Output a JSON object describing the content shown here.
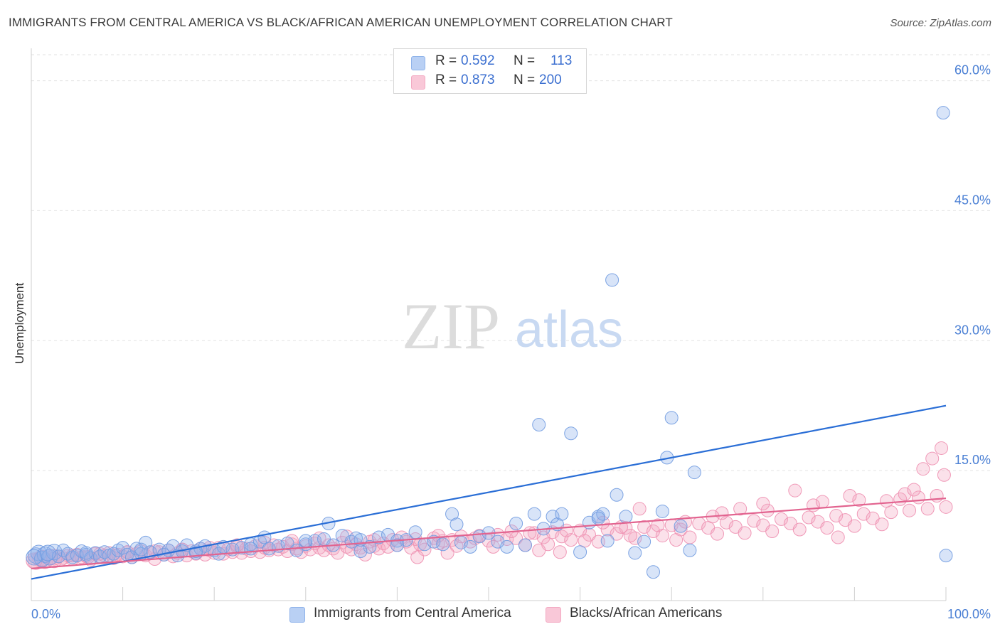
{
  "title": "IMMIGRANTS FROM CENTRAL AMERICA VS BLACK/AFRICAN AMERICAN UNEMPLOYMENT CORRELATION CHART",
  "source": "Source: ZipAtlas.com",
  "watermark": {
    "zip": "ZIP",
    "atlas": "atlas"
  },
  "legend": {
    "r_label": "R =",
    "n_label": "N =",
    "rows": [
      {
        "r": "0.592",
        "n": "113"
      },
      {
        "r": "0.873",
        "n": "200"
      }
    ]
  },
  "chart_data": {
    "type": "scatter",
    "title": "IMMIGRANTS FROM CENTRAL AMERICA VS BLACK/AFRICAN AMERICAN UNEMPLOYMENT CORRELATION CHART",
    "xlabel": "",
    "ylabel": "Unemployment",
    "xlim": [
      0,
      100
    ],
    "ylim": [
      0,
      63
    ],
    "x_tick_labels": [
      "0.0%",
      "100.0%"
    ],
    "y_ticks": [
      15,
      30,
      45,
      60
    ],
    "y_tick_labels": [
      "15.0%",
      "30.0%",
      "45.0%",
      "60.0%"
    ],
    "grid": true,
    "legend_position": "top-center",
    "series": [
      {
        "name": "Immigrants from Central America",
        "color": "#8fb3ea",
        "line_color": "#2a6ed6",
        "trend": {
          "x": [
            0,
            100
          ],
          "y": [
            2.5,
            22.5
          ]
        },
        "points": [
          [
            0.5,
            5.2
          ],
          [
            0.8,
            5.5
          ],
          [
            1.2,
            4.8
          ],
          [
            1.5,
            5.3
          ],
          [
            2,
            5.0
          ],
          [
            2.5,
            5.6
          ],
          [
            3,
            5.1
          ],
          [
            3.5,
            5.8
          ],
          [
            4,
            5.4
          ],
          [
            4.5,
            5.0
          ],
          [
            5,
            5.2
          ],
          [
            5.5,
            5.7
          ],
          [
            6,
            5.3
          ],
          [
            6.5,
            4.9
          ],
          [
            7,
            5.5
          ],
          [
            7.5,
            5.1
          ],
          [
            8,
            5.6
          ],
          [
            8.5,
            5.2
          ],
          [
            9,
            5.4
          ],
          [
            9.5,
            5.8
          ],
          [
            10,
            6.1
          ],
          [
            10.5,
            5.3
          ],
          [
            11,
            5.0
          ],
          [
            11.5,
            6.0
          ],
          [
            12,
            5.4
          ],
          [
            12.5,
            6.7
          ],
          [
            13,
            5.6
          ],
          [
            14,
            5.9
          ],
          [
            14.5,
            5.3
          ],
          [
            15,
            5.8
          ],
          [
            15.5,
            6.3
          ],
          [
            16,
            5.2
          ],
          [
            16.5,
            5.7
          ],
          [
            17,
            6.4
          ],
          [
            18,
            5.5
          ],
          [
            18.5,
            6.0
          ],
          [
            19,
            6.3
          ],
          [
            20,
            5.8
          ],
          [
            20.5,
            5.4
          ],
          [
            21,
            6.2
          ],
          [
            22,
            5.9
          ],
          [
            23,
            6.1
          ],
          [
            24,
            6.5
          ],
          [
            25,
            6.8
          ],
          [
            25.5,
            7.3
          ],
          [
            26,
            6.0
          ],
          [
            27,
            6.3
          ],
          [
            28,
            6.6
          ],
          [
            29,
            5.8
          ],
          [
            30,
            6.5
          ],
          [
            31,
            6.9
          ],
          [
            32,
            7.1
          ],
          [
            32.5,
            8.9
          ],
          [
            33,
            6.4
          ],
          [
            34,
            7.5
          ],
          [
            35,
            6.8
          ],
          [
            35.5,
            7.2
          ],
          [
            36,
            7.0
          ],
          [
            37,
            6.2
          ],
          [
            38,
            7.3
          ],
          [
            39,
            7.6
          ],
          [
            40,
            6.9
          ],
          [
            41,
            7.0
          ],
          [
            42,
            7.9
          ],
          [
            43,
            6.5
          ],
          [
            44,
            6.8
          ],
          [
            45,
            6.5
          ],
          [
            46,
            10.0
          ],
          [
            46.5,
            8.8
          ],
          [
            47,
            6.7
          ],
          [
            48,
            6.2
          ],
          [
            49,
            7.4
          ],
          [
            50,
            7.8
          ],
          [
            51,
            6.8
          ],
          [
            52,
            6.2
          ],
          [
            53,
            8.9
          ],
          [
            54,
            6.4
          ],
          [
            55,
            10.0
          ],
          [
            55.5,
            20.3
          ],
          [
            56,
            8.3
          ],
          [
            57,
            9.7
          ],
          [
            57.5,
            8.8
          ],
          [
            58,
            10.0
          ],
          [
            59,
            19.3
          ],
          [
            60,
            5.6
          ],
          [
            61,
            9.0
          ],
          [
            62,
            9.7
          ],
          [
            62.5,
            10.0
          ],
          [
            63,
            6.9
          ],
          [
            63.5,
            37.0
          ],
          [
            64,
            12.2
          ],
          [
            65,
            9.7
          ],
          [
            66,
            5.5
          ],
          [
            67,
            6.8
          ],
          [
            68,
            3.3
          ],
          [
            69,
            10.3
          ],
          [
            69.5,
            16.5
          ],
          [
            70,
            21.1
          ],
          [
            71,
            8.6
          ],
          [
            72,
            5.8
          ],
          [
            72.5,
            14.8
          ],
          [
            62,
            9.5
          ],
          [
            40,
            6.4
          ],
          [
            36,
            5.7
          ],
          [
            30,
            6.9
          ],
          [
            24,
            6.0
          ],
          [
            18,
            5.7
          ],
          [
            12,
            5.9
          ],
          [
            6,
            5.5
          ],
          [
            99.7,
            56.3
          ],
          [
            100,
            5.2
          ],
          [
            0.3,
            5.0
          ],
          [
            1.8,
            5.5
          ]
        ]
      },
      {
        "name": "Blacks/African Americans",
        "color": "#f3a9c2",
        "line_color": "#e2638f",
        "trend": {
          "x": [
            0,
            100
          ],
          "y": [
            3.7,
            11.8
          ]
        },
        "points": [
          [
            0.5,
            4.5
          ],
          [
            1,
            4.8
          ],
          [
            1.5,
            4.6
          ],
          [
            2,
            5.0
          ],
          [
            2.5,
            4.7
          ],
          [
            3,
            5.1
          ],
          [
            3.5,
            4.9
          ],
          [
            4,
            5.2
          ],
          [
            4.5,
            4.8
          ],
          [
            5,
            5.3
          ],
          [
            5.5,
            5.0
          ],
          [
            6,
            5.1
          ],
          [
            6.5,
            4.7
          ],
          [
            7,
            5.4
          ],
          [
            7.5,
            5.0
          ],
          [
            8,
            5.2
          ],
          [
            8.5,
            5.5
          ],
          [
            9,
            4.9
          ],
          [
            9.5,
            5.3
          ],
          [
            10,
            5.1
          ],
          [
            10.5,
            5.6
          ],
          [
            11,
            5.0
          ],
          [
            11.5,
            5.4
          ],
          [
            12,
            5.7
          ],
          [
            12.5,
            5.2
          ],
          [
            13,
            5.5
          ],
          [
            13.5,
            4.8
          ],
          [
            14,
            5.6
          ],
          [
            14.5,
            5.3
          ],
          [
            15,
            5.8
          ],
          [
            15.5,
            5.1
          ],
          [
            16,
            5.5
          ],
          [
            16.5,
            5.9
          ],
          [
            17,
            5.2
          ],
          [
            17.5,
            5.7
          ],
          [
            18,
            5.4
          ],
          [
            18.5,
            6.0
          ],
          [
            19,
            5.3
          ],
          [
            19.5,
            5.8
          ],
          [
            20,
            5.5
          ],
          [
            20.5,
            6.1
          ],
          [
            21,
            5.4
          ],
          [
            21.5,
            5.9
          ],
          [
            22,
            5.6
          ],
          [
            22.5,
            6.2
          ],
          [
            23,
            5.5
          ],
          [
            23.5,
            6.0
          ],
          [
            24,
            5.7
          ],
          [
            24.5,
            6.3
          ],
          [
            25,
            5.6
          ],
          [
            25.5,
            6.1
          ],
          [
            26,
            5.8
          ],
          [
            26.5,
            6.4
          ],
          [
            27,
            5.9
          ],
          [
            27.5,
            6.2
          ],
          [
            28,
            5.7
          ],
          [
            28.5,
            6.5
          ],
          [
            29,
            6.0
          ],
          [
            29.5,
            5.6
          ],
          [
            30,
            6.3
          ],
          [
            30.5,
            5.9
          ],
          [
            31,
            6.6
          ],
          [
            31.5,
            6.1
          ],
          [
            32,
            5.8
          ],
          [
            32.5,
            6.4
          ],
          [
            33,
            6.0
          ],
          [
            33.5,
            5.5
          ],
          [
            34,
            6.7
          ],
          [
            34.5,
            6.2
          ],
          [
            35,
            5.9
          ],
          [
            35.5,
            6.5
          ],
          [
            36,
            6.1
          ],
          [
            36.5,
            5.3
          ],
          [
            37,
            6.8
          ],
          [
            37.5,
            6.3
          ],
          [
            38,
            6.0
          ],
          [
            38.5,
            6.6
          ],
          [
            39,
            6.2
          ],
          [
            39.5,
            7.0
          ],
          [
            40,
            6.4
          ],
          [
            41,
            6.8
          ],
          [
            41.5,
            6.1
          ],
          [
            42,
            7.1
          ],
          [
            42.5,
            6.5
          ],
          [
            43,
            5.9
          ],
          [
            44,
            7.2
          ],
          [
            44.5,
            6.6
          ],
          [
            45,
            6.9
          ],
          [
            46,
            7.0
          ],
          [
            46.5,
            6.3
          ],
          [
            47,
            7.4
          ],
          [
            48,
            6.8
          ],
          [
            49,
            7.5
          ],
          [
            50,
            6.9
          ],
          [
            51,
            7.6
          ],
          [
            52,
            7.1
          ],
          [
            53,
            7.2
          ],
          [
            54,
            6.4
          ],
          [
            55,
            7.8
          ],
          [
            56,
            7.3
          ],
          [
            56.5,
            6.5
          ],
          [
            57,
            7.9
          ],
          [
            58,
            7.4
          ],
          [
            59,
            7.0
          ],
          [
            60,
            8.1
          ],
          [
            61,
            7.6
          ],
          [
            62,
            6.8
          ],
          [
            63,
            8.2
          ],
          [
            64,
            7.7
          ],
          [
            65,
            8.4
          ],
          [
            66,
            7.2
          ],
          [
            67,
            8.5
          ],
          [
            68,
            8.0
          ],
          [
            69,
            7.5
          ],
          [
            70,
            8.7
          ],
          [
            71,
            8.2
          ],
          [
            72,
            7.3
          ],
          [
            73,
            8.9
          ],
          [
            74,
            8.4
          ],
          [
            75,
            7.7
          ],
          [
            76,
            9.0
          ],
          [
            77,
            8.5
          ],
          [
            78,
            7.8
          ],
          [
            79,
            9.2
          ],
          [
            80,
            8.7
          ],
          [
            81,
            8.0
          ],
          [
            82,
            9.4
          ],
          [
            83,
            8.9
          ],
          [
            84,
            8.2
          ],
          [
            85,
            9.6
          ],
          [
            86,
            9.1
          ],
          [
            87,
            8.4
          ],
          [
            88,
            9.8
          ],
          [
            89,
            9.3
          ],
          [
            90,
            8.6
          ],
          [
            91,
            10.0
          ],
          [
            92,
            9.5
          ],
          [
            93,
            8.8
          ],
          [
            94,
            10.2
          ],
          [
            95,
            11.7
          ],
          [
            96,
            10.4
          ],
          [
            97,
            11.9
          ],
          [
            98,
            10.6
          ],
          [
            99,
            12.1
          ],
          [
            100,
            10.8
          ],
          [
            45.5,
            5.5
          ],
          [
            50.5,
            6.2
          ],
          [
            55.5,
            5.8
          ],
          [
            60.5,
            6.9
          ],
          [
            65.5,
            7.5
          ],
          [
            70.5,
            7.0
          ],
          [
            75.5,
            10.1
          ],
          [
            80.5,
            10.4
          ],
          [
            85.5,
            11.0
          ],
          [
            90.5,
            11.6
          ],
          [
            95.5,
            12.3
          ],
          [
            97.5,
            15.2
          ],
          [
            98.5,
            16.4
          ],
          [
            99.5,
            17.6
          ],
          [
            99.8,
            14.5
          ],
          [
            96.5,
            12.8
          ],
          [
            93.5,
            11.5
          ],
          [
            89.5,
            12.1
          ],
          [
            86.5,
            11.4
          ],
          [
            83.5,
            12.7
          ],
          [
            80,
            11.2
          ],
          [
            77.5,
            10.6
          ],
          [
            74.5,
            9.7
          ],
          [
            71.5,
            9.1
          ],
          [
            68.5,
            8.7
          ],
          [
            66.5,
            10.6
          ],
          [
            64.5,
            8.5
          ],
          [
            62.5,
            9.0
          ],
          [
            58.5,
            8.1
          ],
          [
            54.5,
            7.8
          ],
          [
            52.5,
            8.0
          ],
          [
            48.5,
            7.2
          ],
          [
            44.5,
            7.5
          ],
          [
            40.5,
            7.3
          ],
          [
            37.5,
            7.0
          ],
          [
            34.5,
            7.4
          ],
          [
            31.5,
            7.2
          ],
          [
            28.5,
            6.9
          ],
          [
            25.5,
            6.7
          ],
          [
            22.5,
            6.4
          ],
          [
            19.5,
            6.1
          ],
          [
            16.5,
            5.9
          ],
          [
            13.5,
            5.7
          ],
          [
            10.5,
            5.6
          ],
          [
            7.5,
            5.4
          ],
          [
            4.5,
            5.2
          ],
          [
            2.5,
            5.0
          ],
          [
            1.2,
            4.9
          ],
          [
            0.3,
            4.6
          ],
          [
            3.2,
            4.7
          ],
          [
            6.2,
            5.0
          ],
          [
            9.2,
            5.2
          ],
          [
            42.2,
            5.0
          ],
          [
            57.8,
            5.6
          ],
          [
            88.2,
            7.3
          ]
        ]
      }
    ]
  }
}
